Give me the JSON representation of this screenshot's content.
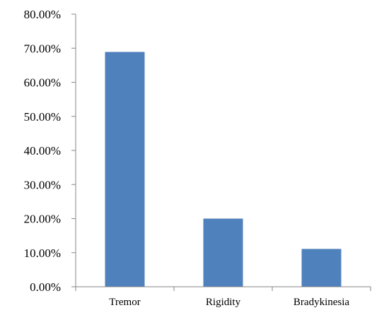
{
  "chart_data": {
    "type": "bar",
    "title": "",
    "xlabel": "",
    "ylabel": "",
    "categories": [
      "Tremor",
      "Rigidity",
      "Bradykinesia"
    ],
    "series": [
      {
        "values": [
          68.9,
          20.0,
          11.1
        ]
      }
    ],
    "ylim": [
      0,
      80
    ],
    "yticks": [
      "0.00%",
      "10.00%",
      "20.00%",
      "30.00%",
      "40.00%",
      "50.00%",
      "60.00%",
      "70.00%",
      "80.00%"
    ],
    "grid": false,
    "legend": "none",
    "colors": {
      "bar": "#4F81BD",
      "axis": "#868686"
    }
  }
}
